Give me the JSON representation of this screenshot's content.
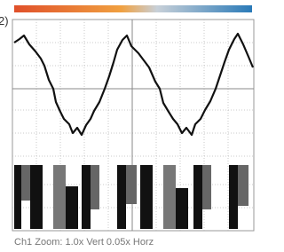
{
  "label": "2)",
  "caption": "Ch1 Zoom: 1.0x Vert 0.05x Horz"
}
